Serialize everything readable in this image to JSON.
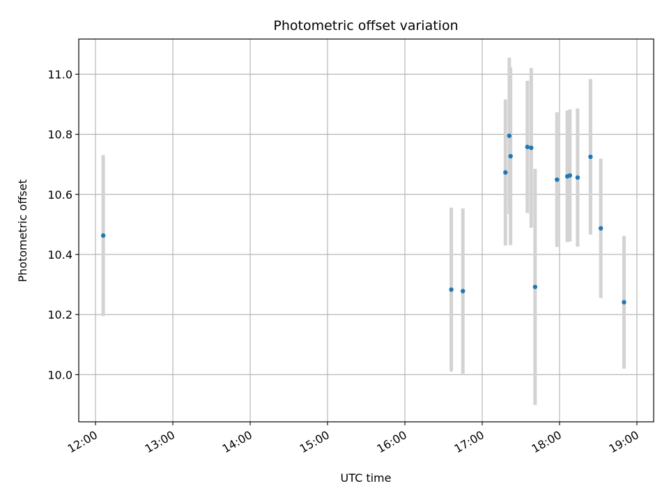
{
  "chart_data": {
    "type": "scatter",
    "title": "Photometric offset variation",
    "xlabel": "UTC time",
    "ylabel": "Photometric offset",
    "xlim": [
      "11:47",
      "19:13"
    ],
    "ylim": [
      9.843,
      11.117
    ],
    "x_ticks": [
      "12:00",
      "13:00",
      "14:00",
      "15:00",
      "16:00",
      "17:00",
      "18:00",
      "19:00"
    ],
    "y_ticks": [
      10.0,
      10.2,
      10.4,
      10.6,
      10.8,
      11.0
    ],
    "grid": true,
    "legend": "none",
    "colors": {
      "point": "#1f77b4",
      "errorbar": "#d3d3d3",
      "grid": "#b0b0b0"
    },
    "points": [
      {
        "x": "12:06",
        "y": 10.463,
        "err": 0.268
      },
      {
        "x": "16:36",
        "y": 10.283,
        "err": 0.273
      },
      {
        "x": "16:45",
        "y": 10.278,
        "err": 0.275
      },
      {
        "x": "17:18",
        "y": 10.673,
        "err": 0.243
      },
      {
        "x": "17:21",
        "y": 10.795,
        "err": 0.26
      },
      {
        "x": "17:22",
        "y": 10.727,
        "err": 0.296
      },
      {
        "x": "17:35",
        "y": 10.758,
        "err": 0.22
      },
      {
        "x": "17:38",
        "y": 10.755,
        "err": 0.266
      },
      {
        "x": "17:41",
        "y": 10.292,
        "err": 0.393
      },
      {
        "x": "17:58",
        "y": 10.649,
        "err": 0.224
      },
      {
        "x": "18:06",
        "y": 10.66,
        "err": 0.219
      },
      {
        "x": "18:08",
        "y": 10.663,
        "err": 0.22
      },
      {
        "x": "18:14",
        "y": 10.656,
        "err": 0.23
      },
      {
        "x": "18:24",
        "y": 10.725,
        "err": 0.259
      },
      {
        "x": "18:32",
        "y": 10.487,
        "err": 0.232
      },
      {
        "x": "18:50",
        "y": 10.241,
        "err": 0.221
      }
    ]
  }
}
